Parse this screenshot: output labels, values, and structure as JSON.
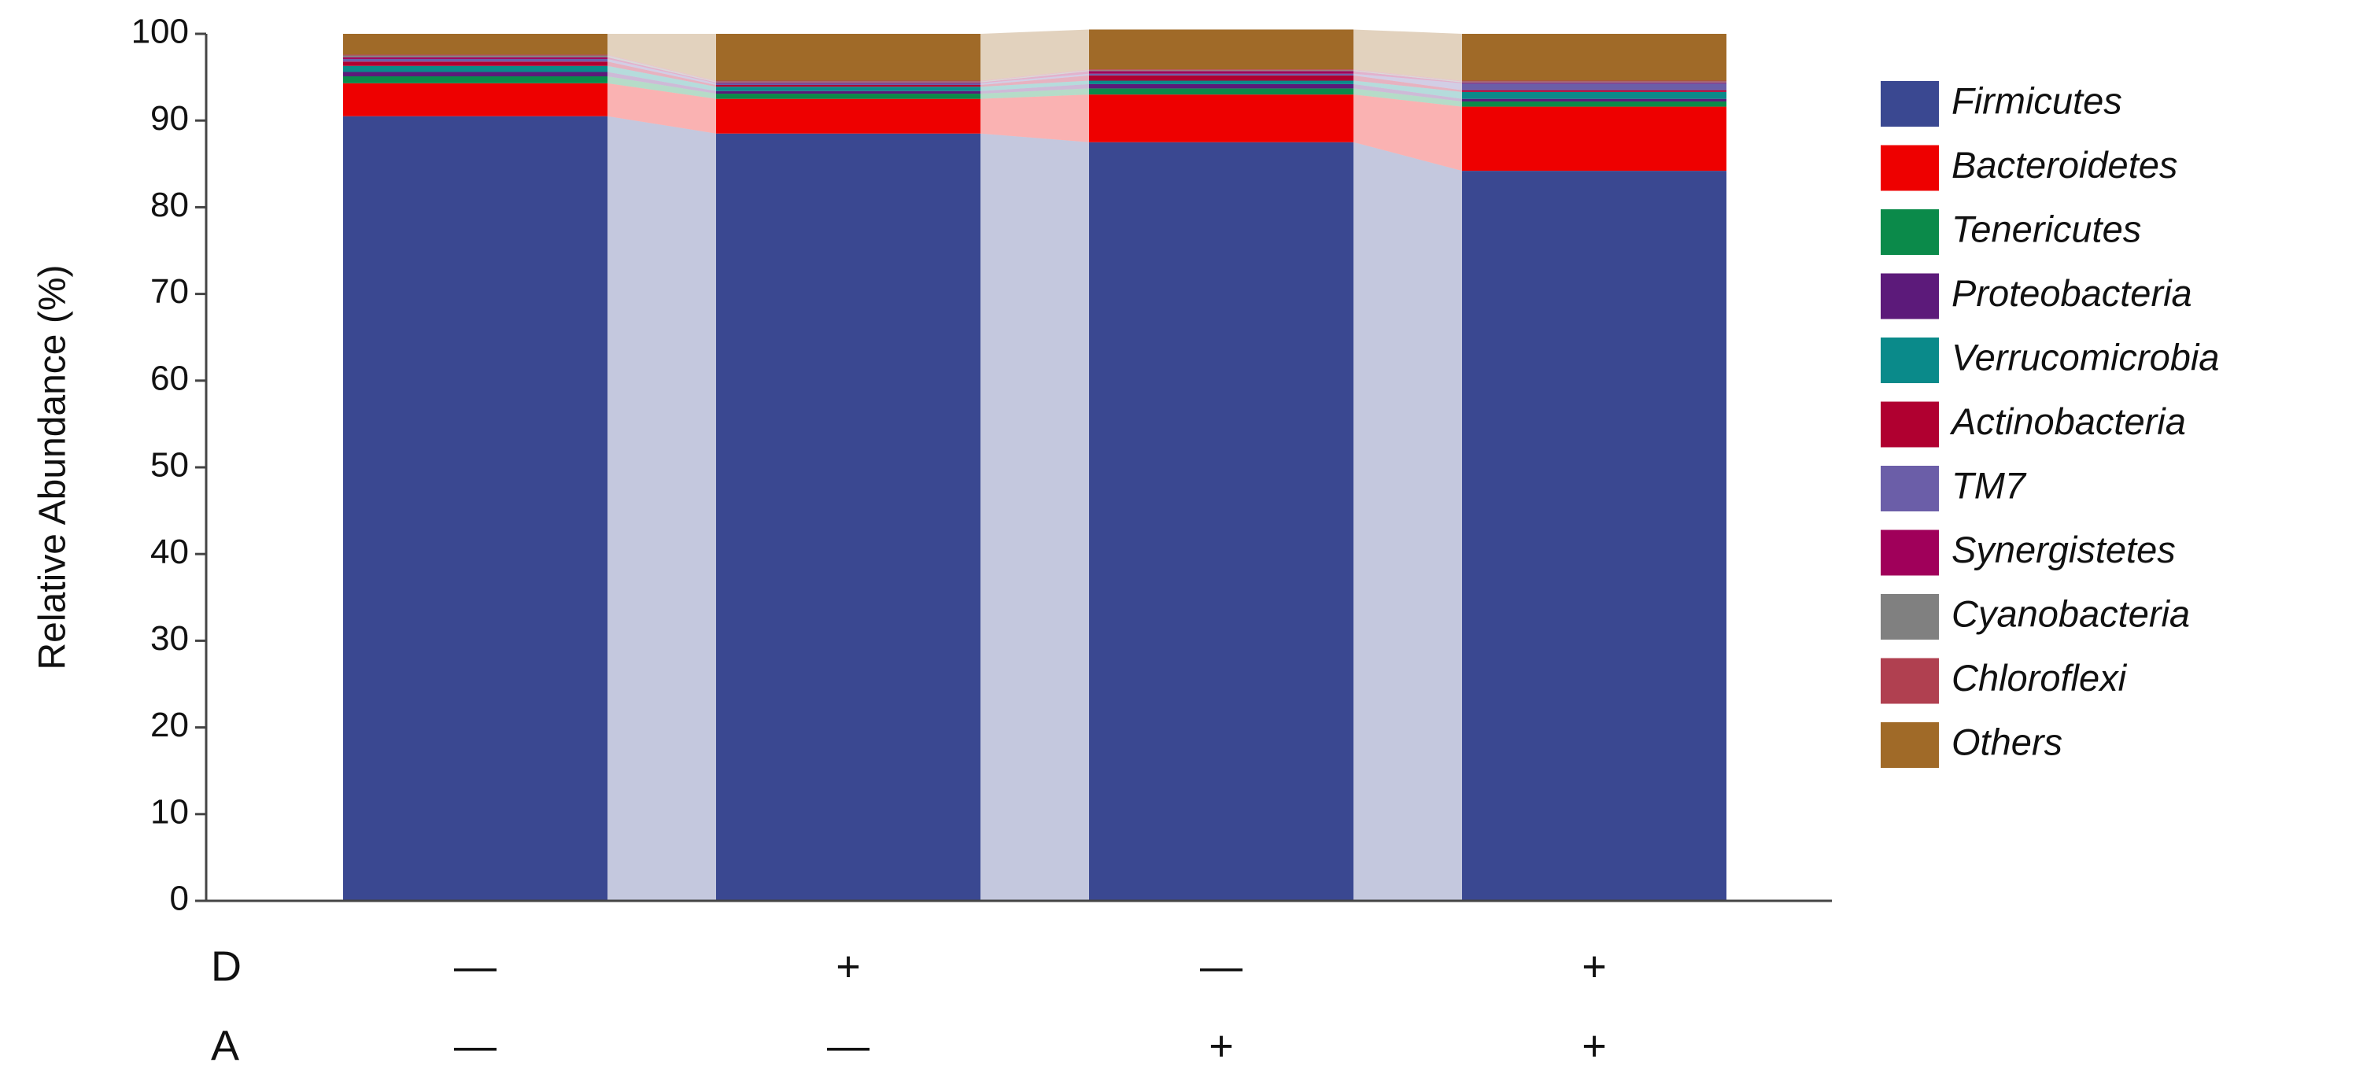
{
  "chart_data": {
    "type": "stacked_bar",
    "y_label": "Relative Abundance (%)",
    "categories": [
      null,
      null,
      null,
      null
    ],
    "x_factors": [
      {
        "name": "D",
        "levels": [
          "—",
          "+",
          "—",
          "+"
        ]
      },
      {
        "name": "A",
        "levels": [
          "—",
          "—",
          "+",
          "+"
        ]
      }
    ],
    "ylim": [
      0,
      100
    ],
    "yticks": [
      0,
      10,
      20,
      30,
      40,
      50,
      60,
      70,
      80,
      90,
      100
    ],
    "connectors": true,
    "legend": "right",
    "series": [
      {
        "name": "Firmicutes",
        "color": "#3a4891",
        "values": [
          90.5,
          88.5,
          87.5,
          84.2
        ]
      },
      {
        "name": "Bacteroidetes",
        "color": "#ee0000",
        "values": [
          3.8,
          4.0,
          5.5,
          7.4
        ]
      },
      {
        "name": "Tenericutes",
        "color": "#0b8a4a",
        "values": [
          0.8,
          0.6,
          0.7,
          0.6
        ]
      },
      {
        "name": "Proteobacteria",
        "color": "#5c1a7a",
        "values": [
          0.5,
          0.3,
          0.5,
          0.3
        ]
      },
      {
        "name": "Verrucomicrobia",
        "color": "#0a8a8a",
        "values": [
          0.7,
          0.5,
          0.4,
          0.8
        ]
      },
      {
        "name": "Actinobacteria",
        "color": "#b00030",
        "values": [
          0.5,
          0.2,
          0.6,
          0.2
        ]
      },
      {
        "name": "TM7",
        "color": "#6b5ea8",
        "values": [
          0.3,
          0.2,
          0.2,
          0.8
        ]
      },
      {
        "name": "Synergistetes",
        "color": "#a0005a",
        "values": [
          0.2,
          0.1,
          0.3,
          0.1
        ]
      },
      {
        "name": "Cyanobacteria",
        "color": "#808080",
        "values": [
          0.2,
          0.1,
          0.1,
          0.1
        ]
      },
      {
        "name": "Chloroflexi",
        "color": "#b04050",
        "values": [
          0.1,
          0.1,
          0.1,
          0.1
        ]
      },
      {
        "name": "Others",
        "color": "#a06a28",
        "values": [
          2.4,
          5.4,
          4.6,
          5.4
        ]
      }
    ]
  }
}
